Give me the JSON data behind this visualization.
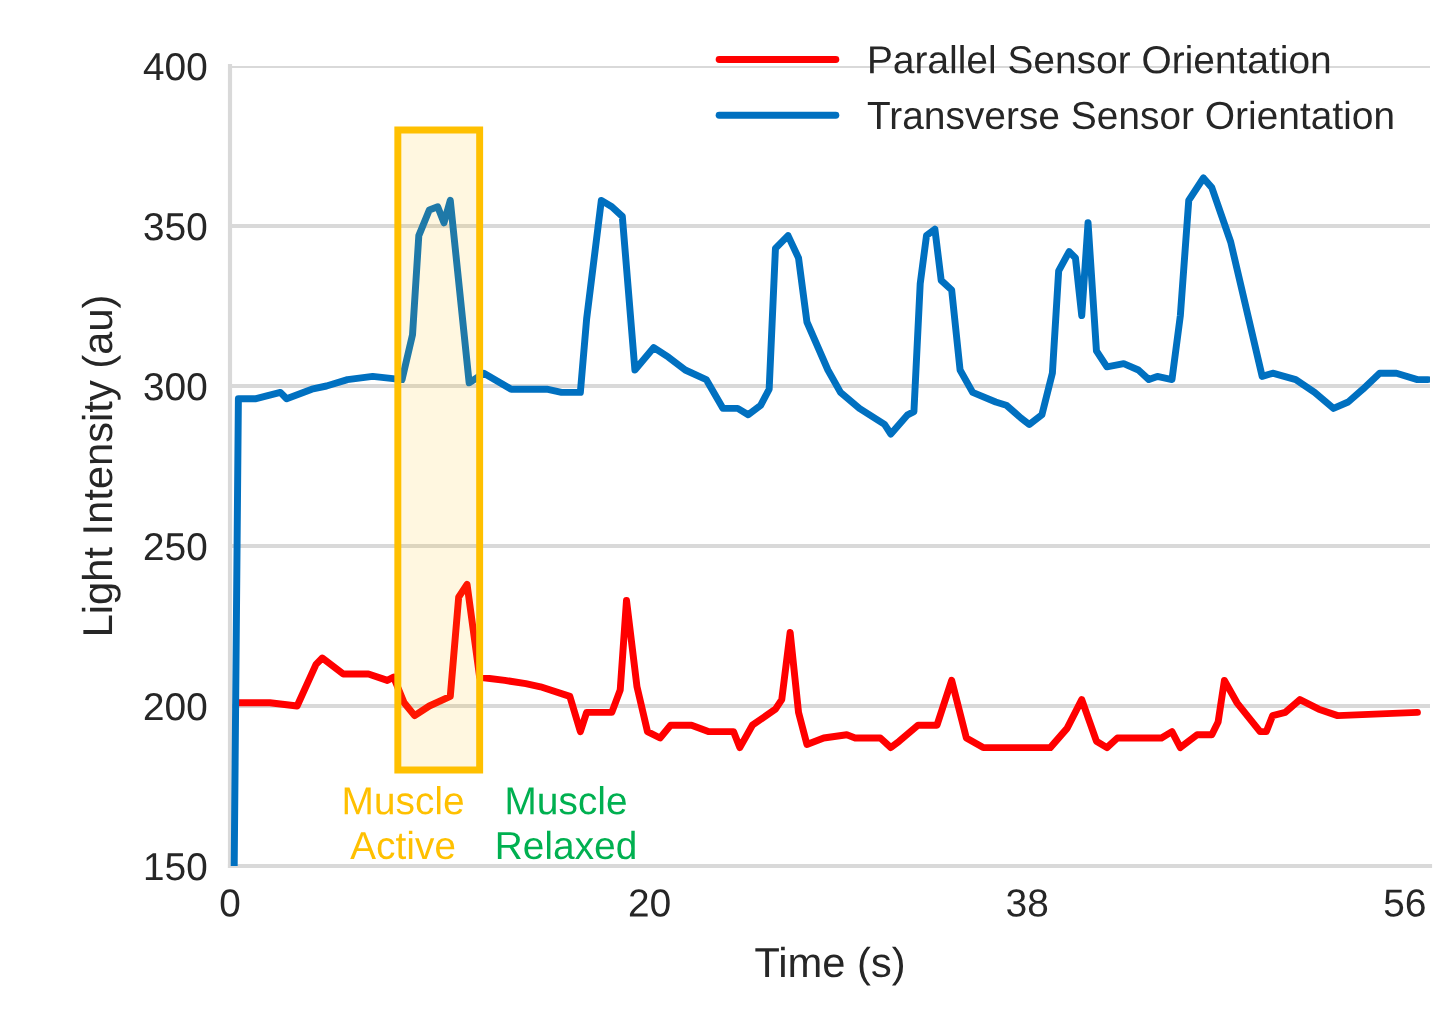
{
  "chart_data": {
    "type": "line",
    "xlabel": "Time (s)",
    "ylabel": "Light Intensity (au)",
    "xlim": [
      0,
      57.2
    ],
    "xticks": [
      0,
      20,
      38,
      56
    ],
    "ylim": [
      150,
      400
    ],
    "yticks": [
      150,
      200,
      250,
      300,
      350,
      400
    ],
    "grid": "y",
    "legend": "top right",
    "marker": "none",
    "line_style": "solid",
    "series": [
      {
        "name": "Parallel Sensor Orientation",
        "color": "#ff0000",
        "x": [
          0.4,
          1.9,
          3.2,
          4.1,
          4.4,
          5.4,
          6.6,
          7.5,
          7.8,
          8.3,
          8.8,
          9.5,
          10.5,
          10.9,
          11.3,
          11.9,
          13.1,
          14.1,
          14.8,
          16.2,
          16.7,
          17.0,
          18.2,
          18.6,
          18.9,
          19.4,
          19.9,
          20.5,
          21.0,
          22.0,
          22.8,
          24.0,
          24.3,
          24.9,
          26.0,
          26.3,
          26.7,
          27.1,
          27.5,
          28.3,
          29.4,
          29.8,
          31.0,
          31.5,
          31.9,
          32.8,
          33.7,
          34.4,
          35.1,
          35.9,
          39.1,
          39.9,
          40.6,
          41.3,
          41.8,
          42.3,
          43.6,
          44.4,
          44.9,
          45.3,
          46.1,
          46.8,
          47.1,
          47.4,
          48.0,
          49.1,
          49.4,
          49.7,
          50.3,
          51.0,
          51.9,
          52.8,
          56.6
        ],
        "values": [
          201,
          201,
          200,
          213,
          215,
          210,
          210,
          208,
          209,
          201,
          197,
          200,
          203,
          234,
          238,
          209,
          208,
          207,
          206,
          203,
          192,
          198,
          198,
          205,
          233,
          206,
          192,
          190,
          194,
          194,
          192,
          192,
          187,
          194,
          199,
          202,
          223,
          198,
          188,
          190,
          191,
          190,
          190,
          187,
          189,
          194,
          194,
          208,
          190,
          187,
          187,
          193,
          202,
          189,
          187,
          190,
          190,
          190,
          192,
          187,
          191,
          191,
          195,
          208,
          201,
          192,
          192,
          197,
          198,
          202,
          199,
          197,
          198
        ]
      },
      {
        "name": "Transverse Sensor Orientation",
        "color": "#0070c0",
        "x": [
          0.2,
          0.4,
          1.2,
          2.4,
          2.7,
          3.9,
          4.6,
          5.6,
          6.8,
          8.2,
          8.7,
          9.0,
          9.5,
          9.9,
          10.2,
          10.5,
          11.4,
          12.1,
          13.4,
          15.1,
          15.8,
          16.7,
          17.0,
          17.7,
          18.2,
          18.7,
          19.3,
          20.2,
          20.9,
          21.7,
          22.7,
          23.5,
          24.2,
          24.7,
          25.3,
          25.7,
          26.0,
          26.6,
          27.1,
          27.5,
          28.5,
          29.1,
          30.0,
          31.2,
          31.5,
          32.3,
          32.6,
          32.9,
          33.2,
          33.6,
          33.9,
          34.4,
          34.8,
          35.4,
          36.5,
          37.0,
          37.7,
          38.1,
          38.7,
          39.2,
          39.5,
          40.0,
          40.3,
          40.6,
          40.9,
          41.3,
          41.8,
          42.6,
          43.3,
          43.8,
          44.2,
          44.9,
          45.3,
          45.7,
          46.4,
          46.8,
          47.7,
          49.2,
          49.7,
          50.8,
          51.7,
          52.6,
          53.3,
          54.0,
          54.8,
          55.6,
          56.6,
          57.1
        ],
        "values": [
          150,
          296,
          296,
          298,
          296,
          299,
          300,
          302,
          303,
          302,
          316,
          347,
          355,
          356,
          351,
          358,
          301,
          304,
          299,
          299,
          298,
          298,
          321,
          358,
          356,
          353,
          305,
          312,
          309,
          305,
          302,
          293,
          293,
          291,
          294,
          299,
          343,
          347,
          340,
          320,
          305,
          298,
          293,
          288,
          285,
          291,
          292,
          332,
          347,
          349,
          333,
          330,
          305,
          298,
          295,
          294,
          290,
          288,
          291,
          304,
          336,
          342,
          340,
          322,
          351,
          311,
          306,
          307,
          305,
          302,
          303,
          302,
          322,
          358,
          365,
          362,
          345,
          303,
          304,
          302,
          298,
          293,
          295,
          299,
          304,
          304,
          302,
          302
        ]
      }
    ],
    "bands": [
      {
        "axis": "x",
        "from": 8.0,
        "to": 11.9,
        "label": "Muscle Active",
        "color": "#ffc000"
      }
    ],
    "annotations": [
      "Muscle Relaxed"
    ]
  }
}
